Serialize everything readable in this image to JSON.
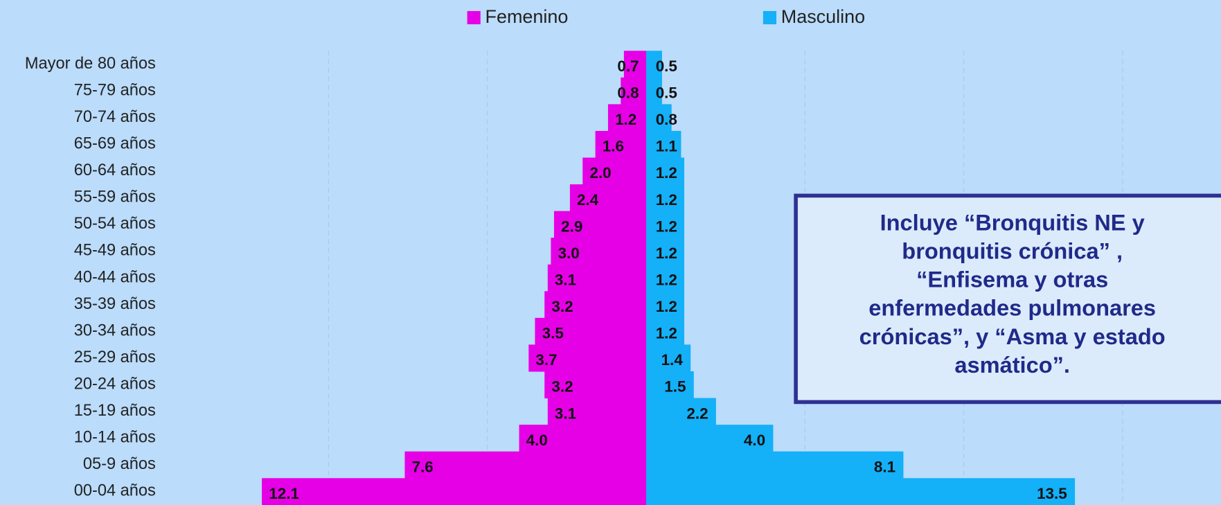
{
  "chart_data": {
    "type": "pyramid",
    "categories": [
      "Mayor de 80 años",
      "75-79 años",
      "70-74 años",
      "65-69 años",
      "60-64 años",
      "55-59 años",
      "50-54 años",
      "45-49 años",
      "40-44 años",
      "35-39 años",
      "30-34 años",
      "25-29 años",
      "20-24 años",
      "15-19 años",
      "10-14 años",
      "05-9 años",
      "00-04 años"
    ],
    "series": [
      {
        "name": "Femenino",
        "color": "#e600e6",
        "side": "left",
        "values": [
          0.7,
          0.8,
          1.2,
          1.6,
          2.0,
          2.4,
          2.9,
          3.0,
          3.1,
          3.2,
          3.5,
          3.7,
          3.2,
          3.1,
          4.0,
          7.6,
          12.1
        ],
        "value_labels": [
          "0.7",
          "0.8",
          "1.2",
          "1.6",
          "2.0",
          "2.4",
          "2.9",
          "3.0",
          "3.1",
          "3.2",
          "3.5",
          "3.7",
          "3.2",
          "3.1",
          "4.0",
          "7.6",
          "12.1"
        ]
      },
      {
        "name": "Masculino",
        "color": "#14b0f8",
        "side": "right",
        "values": [
          0.5,
          0.5,
          0.8,
          1.1,
          1.2,
          1.2,
          1.2,
          1.2,
          1.2,
          1.2,
          1.2,
          1.4,
          1.5,
          2.2,
          4.0,
          8.1,
          13.5
        ],
        "value_labels": [
          "0.5",
          "0.5",
          "0.8",
          "1.1",
          "1.2",
          "1.2",
          "1.2",
          "1.2",
          "1.2",
          "1.2",
          "1.2",
          "1.4",
          "1.5",
          "2.2",
          "4.0",
          "8.1",
          "13.5"
        ]
      }
    ],
    "xlim": [
      -15,
      18.1
    ],
    "xticks": [
      -10,
      -5,
      0,
      5,
      10,
      15
    ],
    "grid": true,
    "legend": "top",
    "annotation": {
      "lines": [
        "Incluye “Bronquitis NE y",
        "bronquitis crónica” ,",
        "“Enfisema y otras",
        "enfermedades pulmonares",
        "crónicas”, y “Asma y estado",
        "asmático”."
      ]
    }
  }
}
